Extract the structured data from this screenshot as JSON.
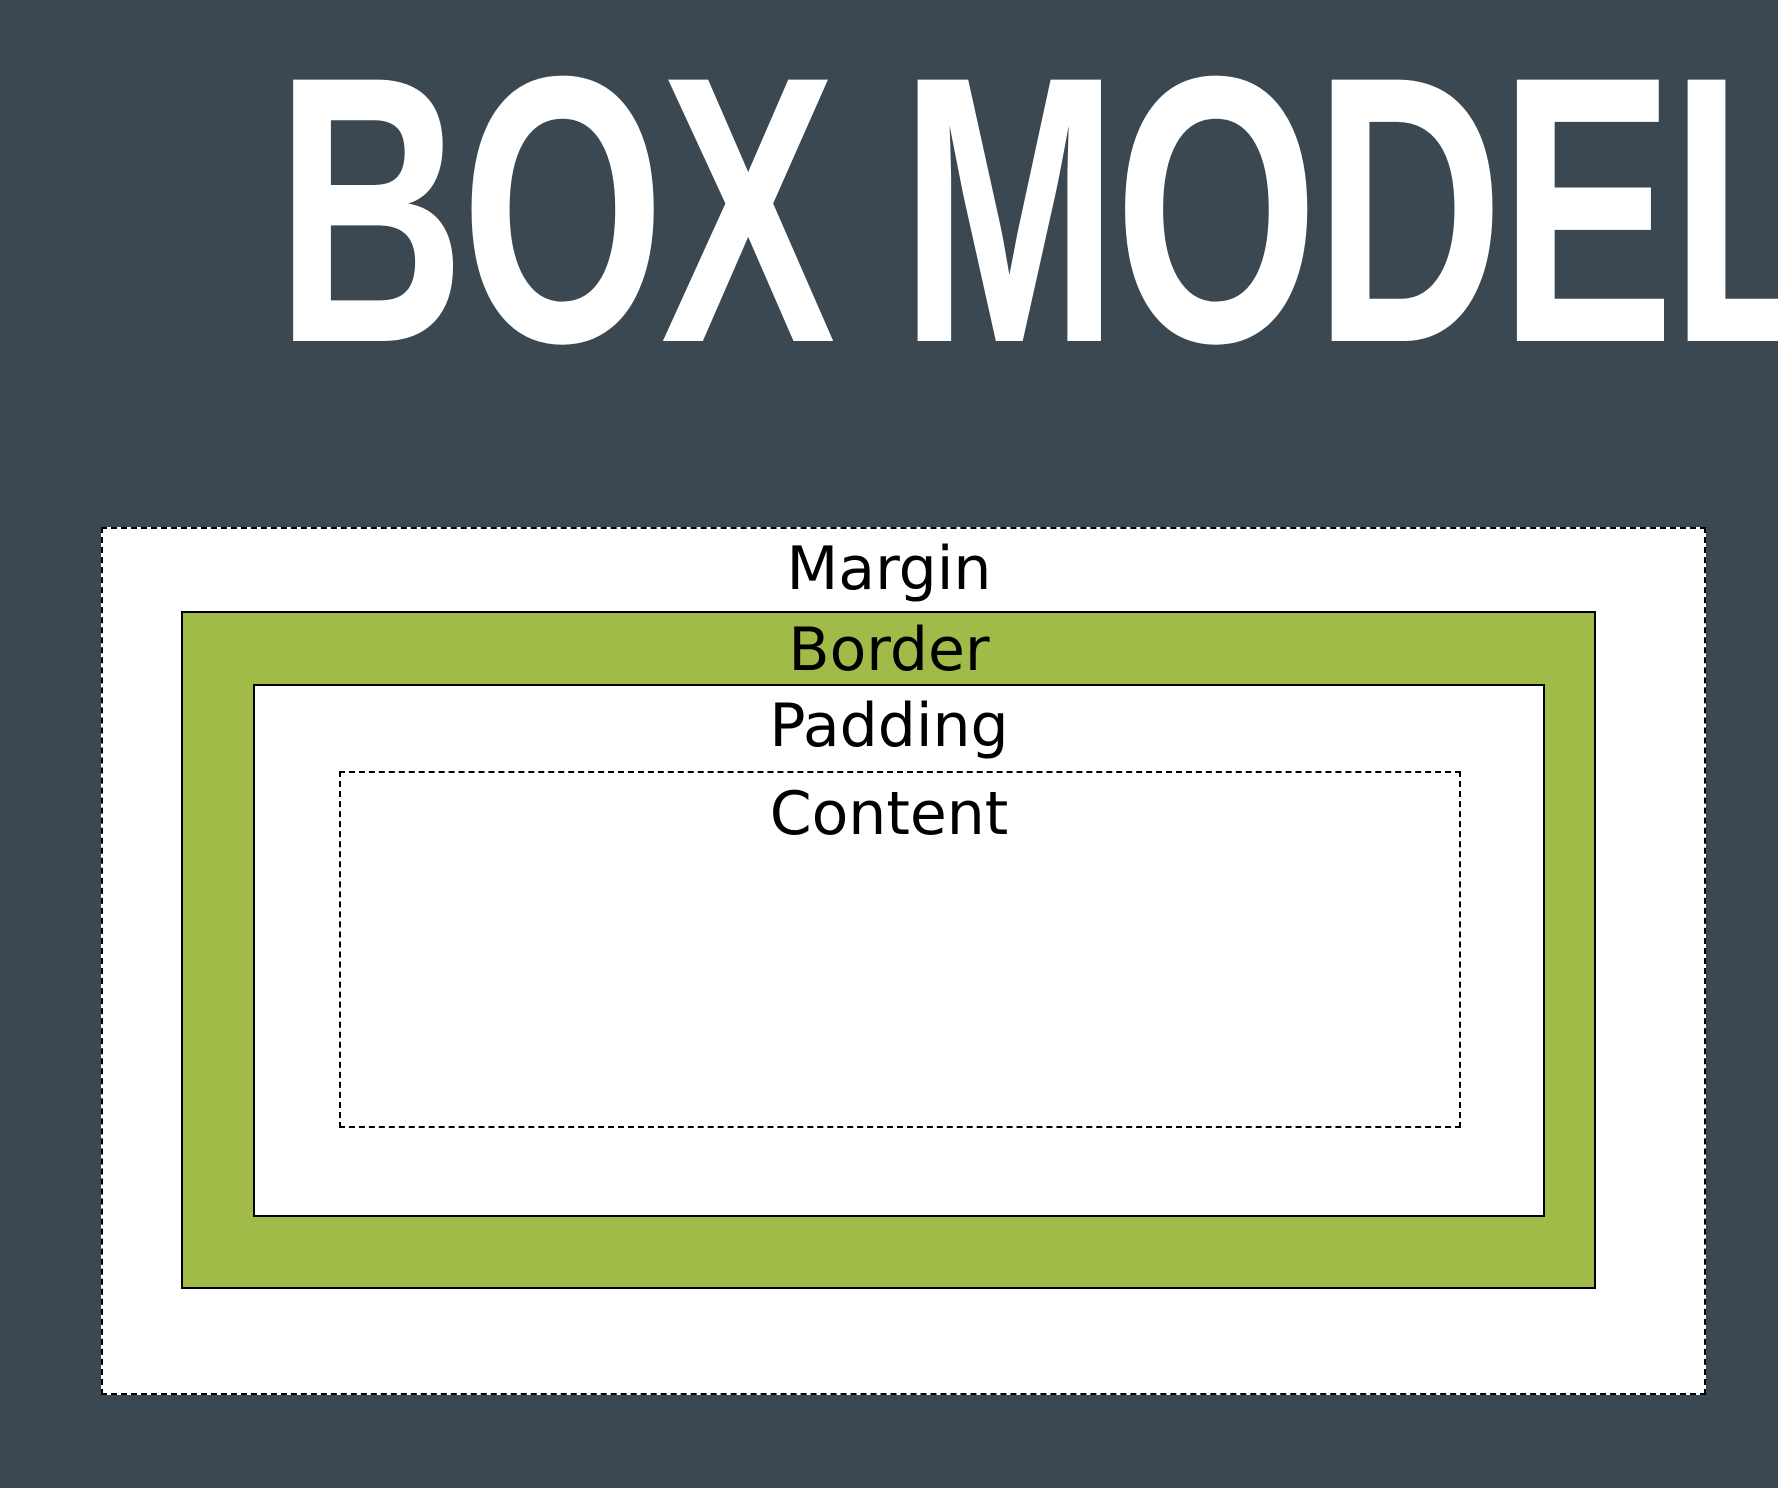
{
  "title": "BOX MODEL",
  "layers": {
    "margin": "Margin",
    "border": "Border",
    "padding": "Padding",
    "content": "Content"
  },
  "colors": {
    "background": "#3b4851",
    "title": "#ffffff",
    "border_fill": "#a0bb48",
    "box_fill": "#ffffff",
    "outline": "#000000"
  }
}
